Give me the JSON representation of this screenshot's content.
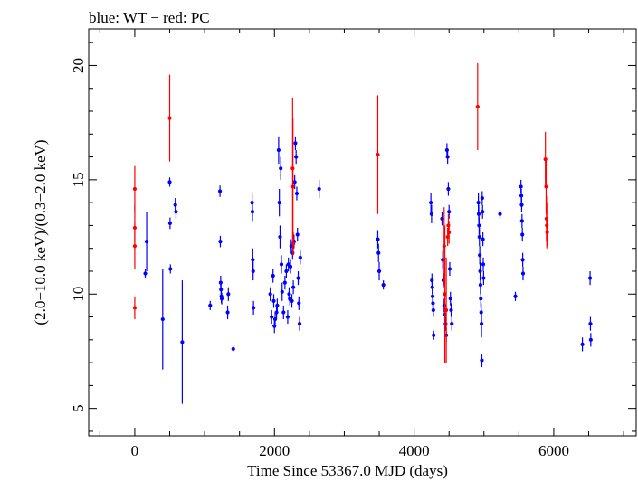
{
  "chart_data": {
    "type": "scatter",
    "title": "blue: WT − red: PC",
    "xlabel": "Time Since 53367.0 MJD (days)",
    "ylabel": "(2.0−10.0 keV)/(0.3−2.0 keV)",
    "xlim": [
      -660,
      7180
    ],
    "ylim": [
      3.8,
      21.6
    ],
    "x_ticks": [
      0,
      2000,
      4000,
      6000
    ],
    "x_tick_labels": [
      "0",
      "2000",
      "4000",
      "6000"
    ],
    "y_ticks": [
      5,
      10,
      15,
      20
    ],
    "y_tick_labels": [
      "5",
      "10",
      "15",
      "20"
    ],
    "grid": false,
    "error_bars": true,
    "series": [
      {
        "name": "WT",
        "color": "#0000ff",
        "points": [
          [
            150,
            10.9,
            0.2
          ],
          [
            170,
            12.3,
            1.3
          ],
          [
            400,
            8.9,
            2.2
          ],
          [
            500,
            14.9,
            0.2
          ],
          [
            505,
            13.1,
            0.25
          ],
          [
            510,
            11.1,
            0.2
          ],
          [
            580,
            13.9,
            0.3
          ],
          [
            590,
            13.6,
            0.3
          ],
          [
            680,
            7.9,
            2.7
          ],
          [
            1080,
            9.5,
            0.2
          ],
          [
            1220,
            14.5,
            0.25
          ],
          [
            1225,
            12.3,
            0.25
          ],
          [
            1230,
            10.5,
            0.3
          ],
          [
            1235,
            10.2,
            0.3
          ],
          [
            1240,
            9.9,
            0.3
          ],
          [
            1245,
            9.8,
            0.25
          ],
          [
            1330,
            9.2,
            0.3
          ],
          [
            1340,
            10.0,
            0.3
          ],
          [
            1410,
            7.6,
            0.1
          ],
          [
            1680,
            14.0,
            0.4
          ],
          [
            1685,
            13.6,
            0.4
          ],
          [
            1690,
            11.5,
            0.5
          ],
          [
            1695,
            11.0,
            0.4
          ],
          [
            1700,
            9.4,
            0.3
          ],
          [
            1940,
            10.0,
            0.3
          ],
          [
            1960,
            9.0,
            0.3
          ],
          [
            1980,
            10.8,
            0.3
          ],
          [
            1990,
            9.7,
            0.3
          ],
          [
            2000,
            8.6,
            0.3
          ],
          [
            2010,
            8.9,
            0.3
          ],
          [
            2030,
            9.2,
            0.3
          ],
          [
            2040,
            9.5,
            0.3
          ],
          [
            2060,
            16.3,
            0.6
          ],
          [
            2070,
            14.0,
            0.6
          ],
          [
            2080,
            12.5,
            0.5
          ],
          [
            2090,
            15.5,
            0.5
          ],
          [
            2100,
            11.3,
            0.4
          ],
          [
            2110,
            10.1,
            0.4
          ],
          [
            2130,
            9.2,
            0.3
          ],
          [
            2150,
            10.5,
            0.3
          ],
          [
            2170,
            11.0,
            0.3
          ],
          [
            2190,
            9.0,
            0.3
          ],
          [
            2200,
            11.3,
            0.3
          ],
          [
            2210,
            10.0,
            0.3
          ],
          [
            2220,
            9.8,
            0.3
          ],
          [
            2230,
            11.2,
            0.3
          ],
          [
            2240,
            12.1,
            0.3
          ],
          [
            2250,
            9.7,
            0.3
          ],
          [
            2260,
            11.8,
            0.3
          ],
          [
            2270,
            10.3,
            0.3
          ],
          [
            2280,
            12.3,
            0.3
          ],
          [
            2290,
            14.9,
            0.3
          ],
          [
            2300,
            16.6,
            0.3
          ],
          [
            2310,
            16.0,
            0.3
          ],
          [
            2320,
            14.4,
            0.3
          ],
          [
            2330,
            12.6,
            0.3
          ],
          [
            2340,
            10.7,
            0.3
          ],
          [
            2350,
            9.6,
            0.3
          ],
          [
            2360,
            8.7,
            0.3
          ],
          [
            2370,
            11.6,
            0.3
          ],
          [
            2640,
            14.6,
            0.4
          ],
          [
            3480,
            12.4,
            0.4
          ],
          [
            3490,
            11.8,
            0.4
          ],
          [
            3500,
            11.0,
            0.4
          ],
          [
            3560,
            10.4,
            0.2
          ],
          [
            4240,
            14.0,
            0.4
          ],
          [
            4250,
            13.5,
            0.4
          ],
          [
            4255,
            10.6,
            0.3
          ],
          [
            4260,
            10.3,
            0.3
          ],
          [
            4265,
            9.9,
            0.3
          ],
          [
            4270,
            9.6,
            0.3
          ],
          [
            4275,
            9.3,
            0.3
          ],
          [
            4280,
            8.2,
            0.2
          ],
          [
            4400,
            13.3,
            0.3
          ],
          [
            4410,
            11.5,
            0.4
          ],
          [
            4420,
            10.6,
            0.3
          ],
          [
            4430,
            9.5,
            0.3
          ],
          [
            4440,
            9.1,
            0.3
          ],
          [
            4450,
            8.7,
            0.3
          ],
          [
            4460,
            8.2,
            0.3
          ],
          [
            4470,
            16.3,
            0.3
          ],
          [
            4480,
            16.0,
            0.3
          ],
          [
            4490,
            14.6,
            0.3
          ],
          [
            4500,
            13.6,
            0.3
          ],
          [
            4510,
            11.1,
            0.3
          ],
          [
            4520,
            9.8,
            0.3
          ],
          [
            4530,
            9.3,
            0.3
          ],
          [
            4540,
            8.7,
            0.3
          ],
          [
            4920,
            14.0,
            0.4
          ],
          [
            4925,
            13.5,
            0.4
          ],
          [
            4930,
            13.0,
            0.4
          ],
          [
            4935,
            12.5,
            0.4
          ],
          [
            4940,
            11.7,
            0.4
          ],
          [
            4945,
            11.0,
            0.4
          ],
          [
            4950,
            10.4,
            0.4
          ],
          [
            4955,
            9.8,
            0.4
          ],
          [
            4960,
            9.2,
            0.4
          ],
          [
            4965,
            8.7,
            0.6
          ],
          [
            4970,
            7.1,
            0.3
          ],
          [
            4975,
            14.2,
            0.3
          ],
          [
            4980,
            13.6,
            0.3
          ],
          [
            4985,
            12.4,
            0.3
          ],
          [
            4990,
            11.3,
            0.3
          ],
          [
            4995,
            10.7,
            0.3
          ],
          [
            5230,
            13.5,
            0.2
          ],
          [
            5450,
            9.9,
            0.2
          ],
          [
            5530,
            14.7,
            0.3
          ],
          [
            5535,
            14.3,
            0.3
          ],
          [
            5540,
            13.9,
            0.3
          ],
          [
            5545,
            13.2,
            0.3
          ],
          [
            5550,
            12.6,
            0.3
          ],
          [
            5555,
            11.5,
            0.3
          ],
          [
            5560,
            10.9,
            0.3
          ],
          [
            6410,
            7.8,
            0.3
          ],
          [
            6520,
            10.7,
            0.3
          ],
          [
            6525,
            8.7,
            0.3
          ],
          [
            6530,
            8.0,
            0.3
          ]
        ]
      },
      {
        "name": "PC",
        "color": "#ff0000",
        "points": [
          [
            0,
            14.6,
            1.0
          ],
          [
            0,
            12.9,
            1.0
          ],
          [
            0,
            12.1,
            1.0
          ],
          [
            0,
            9.4,
            0.5
          ],
          [
            500,
            17.7,
            1.9
          ],
          [
            2260,
            15.5,
            3.1
          ],
          [
            2265,
            14.7,
            3.0
          ],
          [
            2270,
            12.2,
            0.5
          ],
          [
            3480,
            16.1,
            2.6
          ],
          [
            4430,
            12.1,
            1.7
          ],
          [
            4440,
            10.0,
            3.0
          ],
          [
            4460,
            9.3,
            2.3
          ],
          [
            4480,
            12.5,
            0.4
          ],
          [
            4490,
            13.0,
            0.5
          ],
          [
            4500,
            12.7,
            0.5
          ],
          [
            4910,
            18.2,
            1.9
          ],
          [
            5880,
            15.9,
            1.2
          ],
          [
            5890,
            14.7,
            1.2
          ],
          [
            5895,
            13.3,
            1.0
          ],
          [
            5900,
            13.0,
            1.0
          ],
          [
            5905,
            12.7,
            0.6
          ]
        ]
      }
    ]
  }
}
